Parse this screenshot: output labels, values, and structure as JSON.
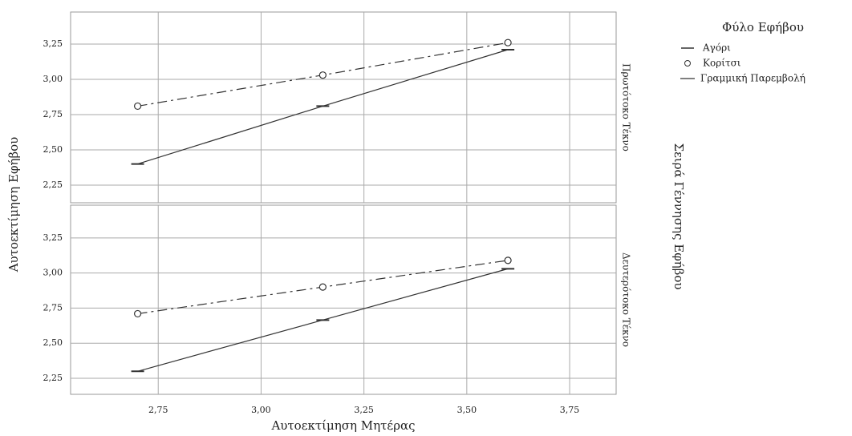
{
  "y_label": "Αυτοεκτίμηση Εφήβου",
  "facet_label": "Σειρά Γέννησης Εφήβου",
  "legend": {
    "title": "Φύλο Εφήβου",
    "fit_label": "Γραμμική Παρεμβολή"
  },
  "chart_data": [
    {
      "type": "line",
      "panel_label": "Πρωτότοκο Τέκνο",
      "x": [
        2.7,
        3.15,
        3.6
      ],
      "series": [
        {
          "name": "Αγόρι",
          "color": "#333333",
          "marker": "dash",
          "line": "solid",
          "values": [
            2.4,
            2.81,
            3.21
          ]
        },
        {
          "name": "Κορίτσι",
          "color": "#333333",
          "marker": "circle",
          "line": "dashdot",
          "values": [
            2.81,
            3.03,
            3.26
          ]
        }
      ],
      "xlim": [
        2.537,
        3.863
      ],
      "ylim": [
        2.125,
        3.477
      ],
      "yticks": [
        {
          "value": 3.25,
          "label": "3,25"
        },
        {
          "value": 3.0,
          "label": "3,00"
        },
        {
          "value": 2.75,
          "label": "2,75"
        },
        {
          "value": 2.5,
          "label": "2,50"
        },
        {
          "value": 2.25,
          "label": "2,25"
        }
      ],
      "grid": true
    },
    {
      "type": "line",
      "panel_label": "Δευτερότοκο Τέκνο",
      "xlabel": "Αυτοεκτίμηση Μητέρας",
      "x": [
        2.7,
        3.15,
        3.6
      ],
      "series": [
        {
          "color": "#333333",
          "marker": "dash",
          "line": "solid",
          "values": [
            2.3,
            2.665,
            3.03
          ]
        },
        {
          "color": "#333333",
          "marker": "circle",
          "line": "dashdot",
          "values": [
            2.71,
            2.9,
            3.09
          ]
        }
      ],
      "xlim": [
        2.537,
        3.863
      ],
      "ylim": [
        2.136,
        3.483
      ],
      "xticks": [
        {
          "value": 2.75,
          "label": "2,75"
        },
        {
          "value": 3.0,
          "label": "3,00"
        },
        {
          "value": 3.25,
          "label": "3,25"
        },
        {
          "value": 3.5,
          "label": "3,50"
        },
        {
          "value": 3.75,
          "label": "3,75"
        }
      ],
      "yticks": [
        {
          "value": 3.25,
          "label": "3,25"
        },
        {
          "value": 3.0,
          "label": "3,00"
        },
        {
          "value": 2.75,
          "label": "2,75"
        },
        {
          "value": 2.5,
          "label": "2,50"
        },
        {
          "value": 2.25,
          "label": "2,25"
        }
      ],
      "grid": true
    }
  ]
}
